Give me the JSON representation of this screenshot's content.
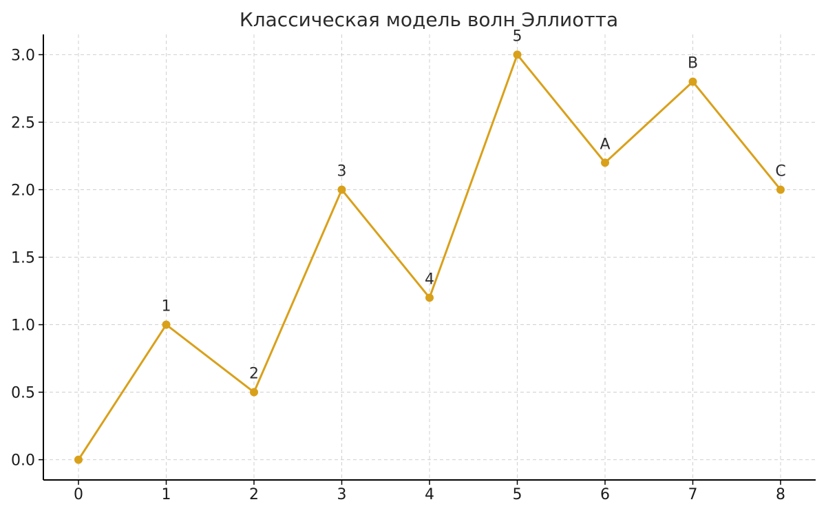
{
  "chart_data": {
    "type": "line",
    "title": "Классическая модель волн Эллиотта",
    "xlabel": "",
    "ylabel": "",
    "x": [
      0,
      1,
      2,
      3,
      4,
      5,
      6,
      7,
      8
    ],
    "series": [
      {
        "values": [
          0,
          1.0,
          0.5,
          2.0,
          1.2,
          3.0,
          2.2,
          2.8,
          2.0
        ],
        "color": "#d9a01a"
      }
    ],
    "point_labels": [
      "",
      "1",
      "2",
      "3",
      "4",
      "5",
      "A",
      "B",
      "C"
    ],
    "xticks": [
      "0",
      "1",
      "2",
      "3",
      "4",
      "5",
      "6",
      "7",
      "8"
    ],
    "yticks": [
      "0.0",
      "0.5",
      "1.0",
      "1.5",
      "2.0",
      "2.5",
      "3.0"
    ],
    "xlim": [
      -0.4,
      8.4
    ],
    "ylim": [
      -0.15,
      3.15
    ],
    "grid": true,
    "colors": {
      "grid": "#cfcfcf",
      "axis": "#000000",
      "line": "#d9a01a"
    }
  }
}
